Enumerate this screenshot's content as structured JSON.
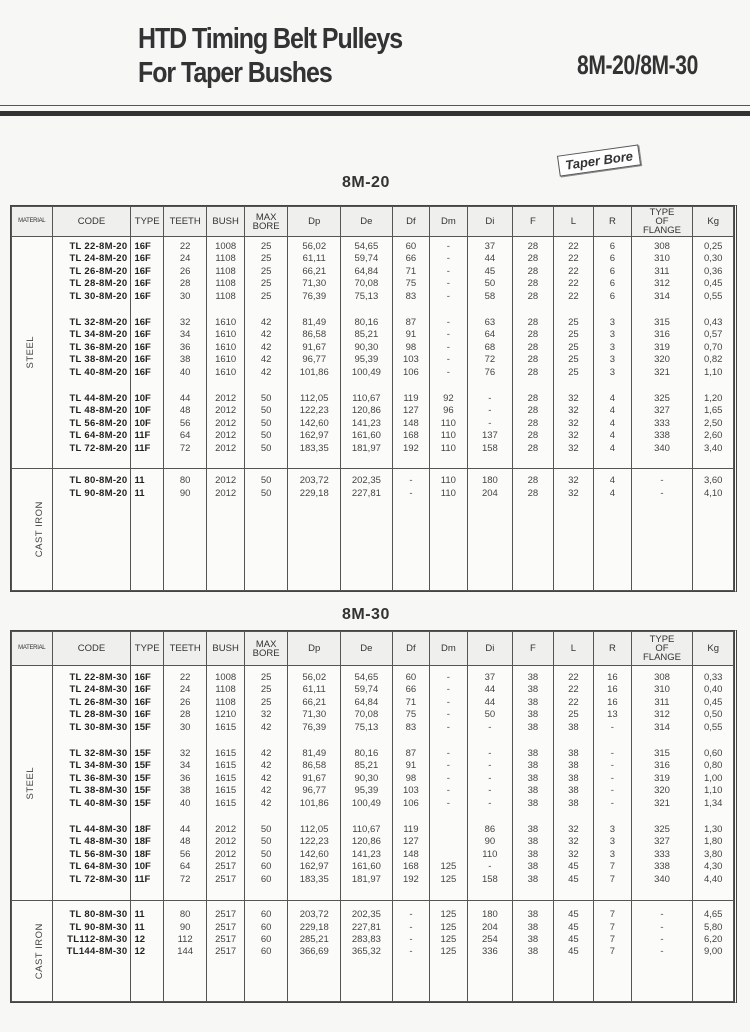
{
  "header": {
    "title_line1": "HTD Timing Belt Pulleys",
    "title_line2": "For Taper Bushes",
    "series": "8M-20/8M-30",
    "badge": "Taper Bore"
  },
  "columns": [
    "MATERIAL",
    "CODE",
    "TYPE",
    "TEETH",
    "BUSH",
    "MAX BORE",
    "Dp",
    "De",
    "Df",
    "Dm",
    "Di",
    "F",
    "L",
    "R",
    "TYPE OF FLANGE",
    "Kg"
  ],
  "tables": [
    {
      "title": "8M-20",
      "sections": [
        {
          "material": "STEEL",
          "groups": [
            [
              [
                "TL 22-8M-20",
                "16F",
                "22",
                "1008",
                "25",
                "56,02",
                "54,65",
                "60",
                "-",
                "37",
                "28",
                "22",
                "6",
                "308",
                "0,25"
              ],
              [
                "TL 24-8M-20",
                "16F",
                "24",
                "1108",
                "25",
                "61,11",
                "59,74",
                "66",
                "-",
                "44",
                "28",
                "22",
                "6",
                "310",
                "0,30"
              ],
              [
                "TL 26-8M-20",
                "16F",
                "26",
                "1108",
                "25",
                "66,21",
                "64,84",
                "71",
                "-",
                "45",
                "28",
                "22",
                "6",
                "311",
                "0,36"
              ],
              [
                "TL 28-8M-20",
                "16F",
                "28",
                "1108",
                "25",
                "71,30",
                "70,08",
                "75",
                "-",
                "50",
                "28",
                "22",
                "6",
                "312",
                "0,45"
              ],
              [
                "TL 30-8M-20",
                "16F",
                "30",
                "1108",
                "25",
                "76,39",
                "75,13",
                "83",
                "-",
                "58",
                "28",
                "22",
                "6",
                "314",
                "0,55"
              ]
            ],
            [
              [
                "TL 32-8M-20",
                "16F",
                "32",
                "1610",
                "42",
                "81,49",
                "80,16",
                "87",
                "-",
                "63",
                "28",
                "25",
                "3",
                "315",
                "0,43"
              ],
              [
                "TL 34-8M-20",
                "16F",
                "34",
                "1610",
                "42",
                "86,58",
                "85,21",
                "91",
                "-",
                "64",
                "28",
                "25",
                "3",
                "316",
                "0,57"
              ],
              [
                "TL 36-8M-20",
                "16F",
                "36",
                "1610",
                "42",
                "91,67",
                "90,30",
                "98",
                "-",
                "68",
                "28",
                "25",
                "3",
                "319",
                "0,70"
              ],
              [
                "TL 38-8M-20",
                "16F",
                "38",
                "1610",
                "42",
                "96,77",
                "95,39",
                "103",
                "-",
                "72",
                "28",
                "25",
                "3",
                "320",
                "0,82"
              ],
              [
                "TL 40-8M-20",
                "16F",
                "40",
                "1610",
                "42",
                "101,86",
                "100,49",
                "106",
                "-",
                "76",
                "28",
                "25",
                "3",
                "321",
                "1,10"
              ]
            ],
            [
              [
                "TL 44-8M-20",
                "10F",
                "44",
                "2012",
                "50",
                "112,05",
                "110,67",
                "119",
                "92",
                "-",
                "28",
                "32",
                "4",
                "325",
                "1,20"
              ],
              [
                "TL 48-8M-20",
                "10F",
                "48",
                "2012",
                "50",
                "122,23",
                "120,86",
                "127",
                "96",
                "-",
                "28",
                "32",
                "4",
                "327",
                "1,65"
              ],
              [
                "TL 56-8M-20",
                "10F",
                "56",
                "2012",
                "50",
                "142,60",
                "141,23",
                "148",
                "110",
                "-",
                "28",
                "32",
                "4",
                "333",
                "2,50"
              ],
              [
                "TL 64-8M-20",
                "11F",
                "64",
                "2012",
                "50",
                "162,97",
                "161,60",
                "168",
                "110",
                "137",
                "28",
                "32",
                "4",
                "338",
                "2,60"
              ],
              [
                "TL 72-8M-20",
                "11F",
                "72",
                "2012",
                "50",
                "183,35",
                "181,97",
                "192",
                "110",
                "158",
                "28",
                "32",
                "4",
                "340",
                "3,40"
              ]
            ]
          ]
        },
        {
          "material": "CAST IRON",
          "groups": [
            [
              [
                "TL 80-8M-20",
                "11",
                "80",
                "2012",
                "50",
                "203,72",
                "202,35",
                "-",
                "110",
                "180",
                "28",
                "32",
                "4",
                "-",
                "3,60"
              ],
              [
                "TL 90-8M-20",
                "11",
                "90",
                "2012",
                "50",
                "229,18",
                "227,81",
                "-",
                "110",
                "204",
                "28",
                "32",
                "4",
                "-",
                "4,10"
              ]
            ]
          ]
        }
      ]
    },
    {
      "title": "8M-30",
      "sections": [
        {
          "material": "STEEL",
          "groups": [
            [
              [
                "TL 22-8M-30",
                "16F",
                "22",
                "1008",
                "25",
                "56,02",
                "54,65",
                "60",
                "-",
                "37",
                "38",
                "22",
                "16",
                "308",
                "0,33"
              ],
              [
                "TL 24-8M-30",
                "16F",
                "24",
                "1108",
                "25",
                "61,11",
                "59,74",
                "66",
                "-",
                "44",
                "38",
                "22",
                "16",
                "310",
                "0,40"
              ],
              [
                "TL 26-8M-30",
                "16F",
                "26",
                "1108",
                "25",
                "66,21",
                "64,84",
                "71",
                "-",
                "44",
                "38",
                "22",
                "16",
                "311",
                "0,45"
              ],
              [
                "TL 28-8M-30",
                "16F",
                "28",
                "1210",
                "32",
                "71,30",
                "70,08",
                "75",
                "-",
                "50",
                "38",
                "25",
                "13",
                "312",
                "0,50"
              ],
              [
                "TL 30-8M-30",
                "15F",
                "30",
                "1615",
                "42",
                "76,39",
                "75,13",
                "83",
                "-",
                "-",
                "38",
                "38",
                "-",
                "314",
                "0,55"
              ]
            ],
            [
              [
                "TL 32-8M-30",
                "15F",
                "32",
                "1615",
                "42",
                "81,49",
                "80,16",
                "87",
                "-",
                "-",
                "38",
                "38",
                "-",
                "315",
                "0,60"
              ],
              [
                "TL 34-8M-30",
                "15F",
                "34",
                "1615",
                "42",
                "86,58",
                "85,21",
                "91",
                "-",
                "-",
                "38",
                "38",
                "-",
                "316",
                "0,80"
              ],
              [
                "TL 36-8M-30",
                "15F",
                "36",
                "1615",
                "42",
                "91,67",
                "90,30",
                "98",
                "-",
                "-",
                "38",
                "38",
                "-",
                "319",
                "1,00"
              ],
              [
                "TL 38-8M-30",
                "15F",
                "38",
                "1615",
                "42",
                "96,77",
                "95,39",
                "103",
                "-",
                "-",
                "38",
                "38",
                "-",
                "320",
                "1,10"
              ],
              [
                "TL 40-8M-30",
                "15F",
                "40",
                "1615",
                "42",
                "101,86",
                "100,49",
                "106",
                "-",
                "-",
                "38",
                "38",
                "-",
                "321",
                "1,34"
              ]
            ],
            [
              [
                "TL 44-8M-30",
                "18F",
                "44",
                "2012",
                "50",
                "112,05",
                "110,67",
                "119",
                "",
                "86",
                "38",
                "32",
                "3",
                "325",
                "1,30"
              ],
              [
                "TL 48-8M-30",
                "18F",
                "48",
                "2012",
                "50",
                "122,23",
                "120,86",
                "127",
                "",
                "90",
                "38",
                "32",
                "3",
                "327",
                "1,80"
              ],
              [
                "TL 56-8M-30",
                "18F",
                "56",
                "2012",
                "50",
                "142,60",
                "141,23",
                "148",
                "",
                "110",
                "38",
                "32",
                "3",
                "333",
                "3,80"
              ],
              [
                "TL 64-8M-30",
                "10F",
                "64",
                "2517",
                "60",
                "162,97",
                "161,60",
                "168",
                "125",
                "-",
                "38",
                "45",
                "7",
                "338",
                "4,30"
              ],
              [
                "TL 72-8M-30",
                "11F",
                "72",
                "2517",
                "60",
                "183,35",
                "181,97",
                "192",
                "125",
                "158",
                "38",
                "45",
                "7",
                "340",
                "4,40"
              ]
            ]
          ]
        },
        {
          "material": "CAST IRON",
          "groups": [
            [
              [
                "TL 80-8M-30",
                "11",
                "80",
                "2517",
                "60",
                "203,72",
                "202,35",
                "-",
                "125",
                "180",
                "38",
                "45",
                "7",
                "-",
                "4,65"
              ],
              [
                "TL 90-8M-30",
                "11",
                "90",
                "2517",
                "60",
                "229,18",
                "227,81",
                "-",
                "125",
                "204",
                "38",
                "45",
                "7",
                "-",
                "5,80"
              ],
              [
                "TL112-8M-30",
                "12",
                "112",
                "2517",
                "60",
                "285,21",
                "283,83",
                "-",
                "125",
                "254",
                "38",
                "45",
                "7",
                "-",
                "6,20"
              ],
              [
                "TL144-8M-30",
                "12",
                "144",
                "2517",
                "60",
                "366,69",
                "365,32",
                "-",
                "125",
                "336",
                "38",
                "45",
                "7",
                "-",
                "9,00"
              ]
            ]
          ]
        }
      ]
    }
  ]
}
